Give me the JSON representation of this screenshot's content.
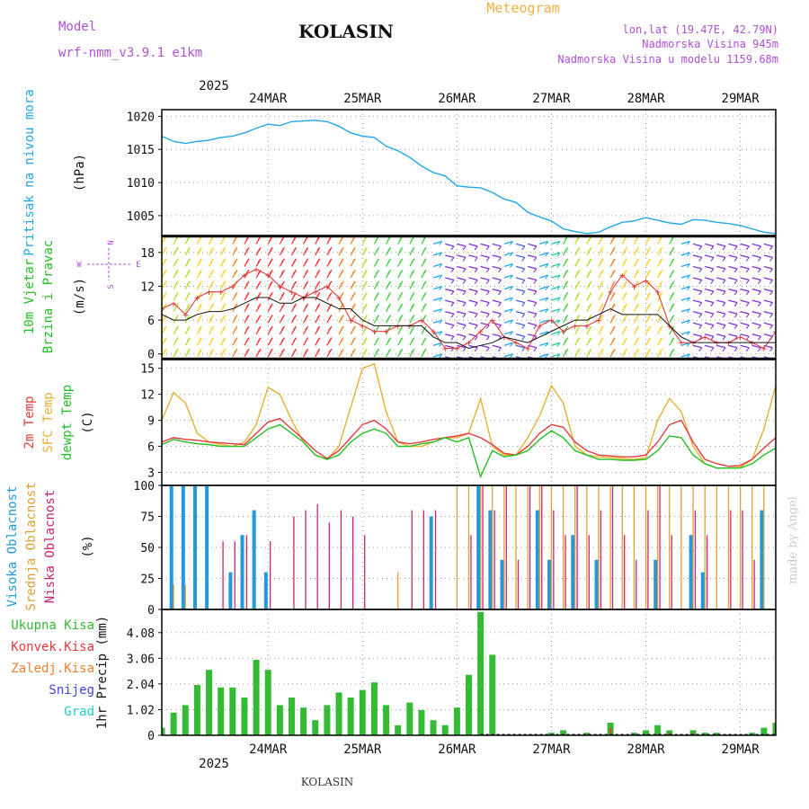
{
  "header": {
    "model_label": "Model",
    "model_name": "wrf-nmm_v3.9.1 e1km",
    "station": "KOLASIN",
    "product": "Meteogram",
    "coords": "lon,lat (19.47E, 42.79N)",
    "elevation": "Nadmorska Visina 945m",
    "model_elevation": "Nadmorska Visina u modelu 1159.68m",
    "credit": "made by Angel",
    "footer_station": "KOLASIN"
  },
  "colors": {
    "pressure": "#22a7e8",
    "temp2m": "#e23b3b",
    "sfc_temp": "#e8b030",
    "dewpt": "#22c022",
    "high_cloud": "#2299dd",
    "mid_cloud": "#e0a030",
    "low_cloud": "#cc2277",
    "precip": "#33bb33",
    "convective": "#e23b3b",
    "frozen": "#f08030",
    "snow": "#4444dd",
    "graupel": "#22cccc",
    "title_purple": "#b04fd8",
    "meteogram_orange": "#f0b040"
  },
  "xaxis": {
    "year": "2025",
    "days": [
      "24MAR",
      "25MAR",
      "26MAR",
      "27MAR",
      "28MAR",
      "29MAR"
    ]
  },
  "panels": [
    {
      "id": "pressure",
      "ylabel_lines": [
        {
          "text": "Pritisak na nivou mora",
          "color": "#22a7e8"
        }
      ],
      "unit": "(hPa)",
      "ticks": [
        "1020",
        "1015",
        "1010",
        "1005"
      ]
    },
    {
      "id": "wind",
      "ylabel_lines": [
        {
          "text": "10m Vjetar",
          "color": "#22c022"
        },
        {
          "text": "Brzina i Pravac",
          "color": "#22c022"
        }
      ],
      "unit": "(m/s)",
      "ticks": [
        "18",
        "12",
        "6",
        "0"
      ]
    },
    {
      "id": "temp",
      "ylabel_lines": [
        {
          "text": "2m Temp",
          "color": "#e23b3b"
        },
        {
          "text": "SFC Temp",
          "color": "#e8b030"
        },
        {
          "text": "dewpt Temp",
          "color": "#22c022"
        }
      ],
      "unit": "(C)",
      "ticks": [
        "15",
        "12",
        "9",
        "6",
        "3"
      ]
    },
    {
      "id": "cloud",
      "ylabel_lines": [
        {
          "text": "Visoka Oblacnost",
          "color": "#2299dd"
        },
        {
          "text": "Srednja Oblacnost",
          "color": "#e0a030"
        },
        {
          "text": "Niska Oblacnost",
          "color": "#cc2277"
        }
      ],
      "unit": "(%)",
      "ticks": [
        "100",
        "75",
        "50",
        "25",
        "0"
      ]
    },
    {
      "id": "precip",
      "unit": "1hr Precip (mm)",
      "ticks": [
        "4.08",
        "3.06",
        "2.04",
        "1.02",
        "0"
      ]
    }
  ],
  "compass": {
    "n": "N",
    "e": "E",
    "s": "S",
    "w": "W"
  },
  "precip_legend": [
    {
      "label": "Ukupna Kisa",
      "color": "#33bb33"
    },
    {
      "label": "Konvek.Kisa",
      "color": "#e23b3b"
    },
    {
      "label": "Zaledj.Kisa",
      "color": "#f08030"
    },
    {
      "label": "Snijeg",
      "color": "#4444dd"
    },
    {
      "label": "Grad",
      "color": "#22cccc"
    }
  ],
  "chart_data": [
    {
      "type": "line",
      "ylabel": "Pritisak na nivou mora (hPa)",
      "ylim": [
        1002,
        1021
      ],
      "x_unit": "hours since 24MAR 00UTC",
      "x": [
        -15,
        -12,
        -9,
        -6,
        -3,
        0,
        3,
        6,
        9,
        12,
        15,
        18,
        21,
        24,
        27,
        30,
        33,
        36,
        39,
        42,
        45,
        48,
        51,
        54,
        57,
        60,
        63,
        66,
        69,
        72,
        75,
        78,
        81,
        84,
        87,
        90,
        93,
        96,
        99,
        102,
        105,
        108,
        111,
        114,
        117,
        120,
        123,
        126,
        129,
        132,
        135,
        138,
        141
      ],
      "values": [
        1017,
        1016.2,
        1015.9,
        1016.2,
        1016.4,
        1016.8,
        1017.0,
        1017.5,
        1018.2,
        1018.8,
        1018.6,
        1019.2,
        1019.3,
        1019.4,
        1019.2,
        1018.5,
        1017.5,
        1017.0,
        1016.8,
        1015.5,
        1014.8,
        1013.8,
        1012.5,
        1011.5,
        1011.0,
        1009.5,
        1009.3,
        1009.2,
        1008.5,
        1007.5,
        1007.0,
        1005.5,
        1004.8,
        1004.2,
        1003.0,
        1002.6,
        1002.3,
        1002.5,
        1003.3,
        1004.0,
        1004.2,
        1004.7,
        1004.3,
        1003.9,
        1003.7,
        1004.4,
        1004.3,
        1004.0,
        1003.8,
        1003.5,
        1003.0,
        1002.5,
        1002.3
      ]
    },
    {
      "type": "line",
      "ylabel": "10m Vjetar Brzina i Pravac (m/s)",
      "ylim": [
        -1,
        21
      ],
      "x_unit": "hours since 24MAR 00UTC",
      "x": [
        -15,
        -12,
        -9,
        -6,
        -3,
        0,
        3,
        6,
        9,
        12,
        15,
        18,
        21,
        24,
        27,
        30,
        33,
        36,
        39,
        42,
        45,
        48,
        51,
        54,
        57,
        60,
        63,
        66,
        69,
        72,
        75,
        78,
        81,
        84,
        87,
        90,
        93,
        96,
        99,
        102,
        105,
        108,
        111,
        114,
        117,
        120,
        123,
        126,
        129,
        132,
        135,
        138,
        141
      ],
      "series": [
        {
          "name": "gust",
          "values": [
            8,
            9,
            7,
            10,
            11,
            11,
            12,
            14,
            15,
            14,
            12,
            11,
            10,
            11,
            12,
            10,
            6,
            5,
            4,
            4,
            5,
            5,
            6,
            4,
            1,
            1,
            2,
            4,
            6,
            3,
            2,
            1,
            5,
            6,
            4,
            5,
            5,
            6,
            11,
            14,
            12,
            13,
            11,
            5,
            2,
            2,
            3,
            2,
            2,
            3,
            2,
            1,
            4
          ]
        },
        {
          "name": "speed",
          "values": [
            7,
            6,
            6,
            7,
            7.5,
            7.5,
            8,
            9,
            10,
            10,
            9,
            9,
            10,
            10,
            9,
            8,
            8,
            6,
            5,
            5,
            5,
            5,
            5,
            3,
            2,
            2,
            1,
            1.5,
            2,
            3,
            2.5,
            2,
            3,
            4,
            5,
            6,
            6,
            7,
            8,
            7,
            7,
            7,
            7,
            5,
            3,
            2,
            2,
            2,
            2,
            2,
            2,
            2,
            2
          ]
        }
      ]
    },
    {
      "type": "line",
      "ylabel": "Temp (C)",
      "ylim": [
        1.5,
        16
      ],
      "x_unit": "hours since 24MAR 00UTC",
      "x": [
        -15,
        -12,
        -9,
        -6,
        -3,
        0,
        3,
        6,
        9,
        12,
        15,
        18,
        21,
        24,
        27,
        30,
        33,
        36,
        39,
        42,
        45,
        48,
        51,
        54,
        57,
        60,
        63,
        66,
        69,
        72,
        75,
        78,
        81,
        84,
        87,
        90,
        93,
        96,
        99,
        102,
        105,
        108,
        111,
        114,
        117,
        120,
        123,
        126,
        129,
        132,
        135,
        138,
        141
      ],
      "series": [
        {
          "name": "2m Temp",
          "values": [
            6.5,
            7,
            6.8,
            6.7,
            6.5,
            6.4,
            6.3,
            6.2,
            7.5,
            8.8,
            9.2,
            8.0,
            6.8,
            5.5,
            4.6,
            5.5,
            7.0,
            8.5,
            9.0,
            8.0,
            6.5,
            6.3,
            6.5,
            6.8,
            7.0,
            7.2,
            7.5,
            7.0,
            6.2,
            5.2,
            5.0,
            6.0,
            7.5,
            8.5,
            8.2,
            6.5,
            5.5,
            5.0,
            4.9,
            4.8,
            4.8,
            5.0,
            6.5,
            8.5,
            9.0,
            6.5,
            4.5,
            4.0,
            3.7,
            3.8,
            4.5,
            5.8,
            7.0
          ]
        },
        {
          "name": "SFC Temp",
          "values": [
            9,
            12.2,
            11,
            7.5,
            6.5,
            6.2,
            6.0,
            6.5,
            8.5,
            12.8,
            12.0,
            9.0,
            6.5,
            5.0,
            4.5,
            6.0,
            10.5,
            15.0,
            15.5,
            10.0,
            6.5,
            6.0,
            6.0,
            6.5,
            7.0,
            7.0,
            7.5,
            11.5,
            6.0,
            5.0,
            5.0,
            7.0,
            9.5,
            13.0,
            11.0,
            6.0,
            5.0,
            4.8,
            4.7,
            4.6,
            4.5,
            4.7,
            9.0,
            11.5,
            10.0,
            6.0,
            4.0,
            3.5,
            3.5,
            3.6,
            4.5,
            8.0,
            13.0
          ]
        },
        {
          "name": "dewpt Temp",
          "values": [
            6.2,
            6.8,
            6.5,
            6.3,
            6.2,
            6.0,
            6.0,
            6.0,
            7.0,
            8.0,
            8.5,
            7.5,
            6.5,
            5.0,
            4.5,
            5.0,
            6.5,
            7.5,
            8.0,
            7.5,
            6.0,
            6.0,
            6.3,
            6.5,
            7.0,
            6.5,
            7.0,
            2.5,
            5.5,
            4.8,
            5.0,
            5.5,
            6.8,
            7.8,
            7.0,
            5.5,
            5.0,
            4.5,
            4.5,
            4.4,
            4.4,
            4.5,
            5.5,
            7.2,
            7.0,
            5.0,
            4.0,
            3.5,
            3.5,
            3.5,
            4.0,
            5.0,
            5.8
          ]
        }
      ]
    },
    {
      "type": "bar",
      "ylabel": "Oblacnost (%)",
      "ylim": [
        0,
        100
      ],
      "x_unit": "hours since 24MAR 00UTC",
      "x": [
        -15,
        -12,
        -9,
        -6,
        -3,
        0,
        3,
        6,
        9,
        12,
        15,
        18,
        21,
        24,
        27,
        30,
        33,
        36,
        39,
        42,
        45,
        48,
        51,
        54,
        57,
        60,
        63,
        66,
        69,
        72,
        75,
        78,
        81,
        84,
        87,
        90,
        93,
        96,
        99,
        102,
        105,
        108,
        111,
        114,
        117,
        120,
        123,
        126,
        129,
        132,
        135,
        138,
        141
      ],
      "series": [
        {
          "name": "Visoka Oblacnost",
          "values": [
            100,
            100,
            100,
            100,
            100,
            0,
            30,
            60,
            80,
            30,
            0,
            0,
            0,
            0,
            0,
            0,
            0,
            0,
            0,
            0,
            0,
            0,
            0,
            75,
            0,
            0,
            0,
            100,
            80,
            40,
            0,
            0,
            80,
            40,
            0,
            60,
            0,
            40,
            0,
            0,
            0,
            0,
            40,
            0,
            0,
            60,
            30,
            0,
            0,
            0,
            0,
            80,
            0
          ]
        },
        {
          "name": "Srednja Oblacnost",
          "values": [
            0,
            20,
            20,
            0,
            0,
            0,
            0,
            0,
            0,
            0,
            0,
            0,
            0,
            0,
            0,
            0,
            0,
            0,
            0,
            0,
            30,
            0,
            0,
            0,
            0,
            100,
            100,
            100,
            100,
            100,
            100,
            100,
            100,
            100,
            100,
            100,
            100,
            100,
            100,
            100,
            100,
            100,
            100,
            100,
            100,
            100,
            100,
            100,
            100,
            100,
            100,
            100,
            100
          ]
        },
        {
          "name": "Niska Oblacnost",
          "values": [
            0,
            0,
            0,
            0,
            0,
            55,
            55,
            60,
            0,
            55,
            0,
            75,
            80,
            85,
            70,
            80,
            75,
            60,
            0,
            0,
            0,
            80,
            80,
            80,
            0,
            0,
            60,
            100,
            80,
            100,
            40,
            100,
            100,
            80,
            60,
            100,
            60,
            80,
            100,
            60,
            40,
            80,
            100,
            60,
            0,
            80,
            60,
            0,
            80,
            80,
            40,
            0,
            80
          ]
        }
      ]
    },
    {
      "type": "bar",
      "ylabel": "1hr Precip (mm)",
      "ylim": [
        0,
        5
      ],
      "x_unit": "hours since 24MAR 00UTC",
      "x": [
        -15,
        -12,
        -9,
        -6,
        -3,
        0,
        3,
        6,
        9,
        12,
        15,
        18,
        21,
        24,
        27,
        30,
        33,
        36,
        39,
        42,
        45,
        48,
        51,
        54,
        57,
        60,
        63,
        66,
        69,
        72,
        75,
        78,
        81,
        84,
        87,
        90,
        93,
        96,
        99,
        102,
        105,
        108,
        111,
        114,
        117,
        120,
        123,
        126,
        129,
        132,
        135,
        138,
        141
      ],
      "series": [
        {
          "name": "Ukupna Kisa",
          "values": [
            0.3,
            0.9,
            1.2,
            2.0,
            2.6,
            1.9,
            1.9,
            1.5,
            3.0,
            2.6,
            1.2,
            1.5,
            1.1,
            0.6,
            1.2,
            1.7,
            1.5,
            1.8,
            2.1,
            1.2,
            0.4,
            1.3,
            1.0,
            0.6,
            0.4,
            1.1,
            2.4,
            4.9,
            3.2,
            0.0,
            0.0,
            0.0,
            0.0,
            0.1,
            0.2,
            0.0,
            0.1,
            0.0,
            0.5,
            0.0,
            0.1,
            0.2,
            0.4,
            0.2,
            0.0,
            0.2,
            0.1,
            0.1,
            0.0,
            0.0,
            0.1,
            0.3,
            0.5
          ]
        },
        {
          "name": "Konvek.Kisa",
          "values": [
            0,
            0,
            0,
            0,
            0,
            0,
            0,
            0,
            0,
            0,
            0,
            0,
            0,
            0,
            0,
            0,
            0,
            0,
            0,
            0,
            0,
            0,
            0,
            0,
            0,
            0,
            0,
            0,
            0,
            0,
            0,
            0,
            0,
            0,
            0,
            0,
            0,
            0,
            0.3,
            0,
            0,
            0,
            0,
            0.1,
            0,
            0.1,
            0,
            0,
            0,
            0,
            0,
            0,
            0
          ]
        }
      ]
    }
  ]
}
